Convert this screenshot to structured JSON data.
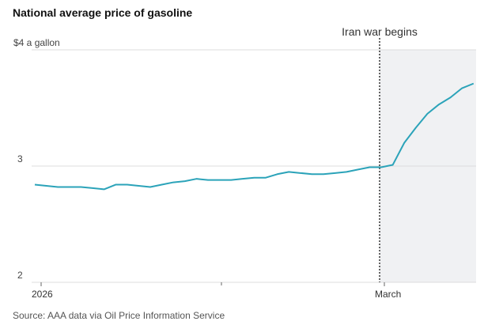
{
  "chart_data": {
    "type": "line",
    "title": "National average price of gasoline",
    "annotation": "Iran war begins",
    "source": "Source: AAA data via Oil Price Information Service",
    "categories": [
      "2026",
      null,
      null,
      null,
      null,
      null,
      null,
      null,
      null,
      null,
      null,
      null,
      null,
      null,
      null,
      null,
      null,
      null,
      null,
      null,
      null,
      null,
      null,
      null,
      null,
      null,
      null,
      null,
      null,
      null,
      "March",
      null,
      null,
      null,
      null,
      null,
      null,
      null,
      null
    ],
    "series": [
      {
        "name": "National average price of gasoline",
        "color": "#2ba3b9",
        "values": [
          2.84,
          2.83,
          2.82,
          2.82,
          2.82,
          2.81,
          2.8,
          2.84,
          2.84,
          2.83,
          2.82,
          2.84,
          2.86,
          2.87,
          2.89,
          2.88,
          2.88,
          2.88,
          2.89,
          2.9,
          2.9,
          2.93,
          2.95,
          2.94,
          2.93,
          2.93,
          2.94,
          2.95,
          2.97,
          2.99,
          2.99,
          3.01,
          3.2,
          3.33,
          3.45,
          3.53,
          3.59,
          3.67,
          3.71
        ]
      }
    ],
    "ylim": [
      2,
      4
    ],
    "yticks": [
      2,
      3,
      {
        "value": 4,
        "label": "$4 a gallon"
      }
    ],
    "grid": true
  }
}
